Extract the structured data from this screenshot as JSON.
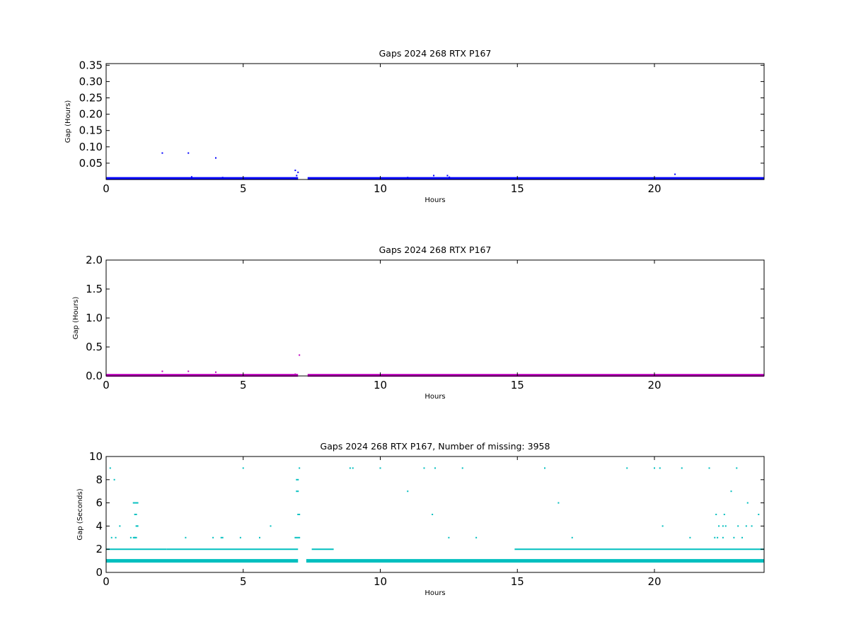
{
  "chart_data": [
    {
      "type": "scatter",
      "title": "Gaps 2024 268 RTX  P167",
      "xlabel": "Hours",
      "ylabel": "Gap (Hours)",
      "xlim": [
        0,
        24
      ],
      "ylim": [
        0,
        0.355
      ],
      "xticks": [
        "0",
        "5",
        "10",
        "15",
        "20"
      ],
      "yticks": [
        "0.05",
        "0.10",
        "0.15",
        "0.20",
        "0.25",
        "0.30",
        "0.35"
      ],
      "grid": false,
      "color": "#0000ff",
      "baseline": {
        "y": 0.003,
        "x_ranges": [
          [
            0,
            7.0
          ],
          [
            7.35,
            24
          ]
        ]
      },
      "series": [
        {
          "x": [
            2.05,
            3.0,
            3.12,
            4.0,
            4.25,
            6.9,
            6.95,
            7.0,
            11.0,
            11.95,
            12.45,
            12.52,
            20.75
          ],
          "y": [
            0.081,
            0.081,
            0.008,
            0.066,
            0.006,
            0.028,
            0.012,
            0.022,
            0.006,
            0.012,
            0.012,
            0.007,
            0.016
          ]
        }
      ]
    },
    {
      "type": "scatter",
      "title": "Gaps 2024 268 RTX  P167",
      "xlabel": "Hours",
      "ylabel": "Gap (Hours)",
      "xlim": [
        0,
        24
      ],
      "ylim": [
        0,
        2.0
      ],
      "xticks": [
        "0",
        "5",
        "10",
        "15",
        "20"
      ],
      "yticks": [
        "0.0",
        "0.5",
        "1.0",
        "1.5",
        "2.0"
      ],
      "grid": false,
      "color": "#bf00bf",
      "baseline": {
        "y": 0.01,
        "x_ranges": [
          [
            0,
            7.0
          ],
          [
            7.35,
            24
          ]
        ]
      },
      "series": [
        {
          "x": [
            2.05,
            3.0,
            4.0,
            6.9,
            7.05
          ],
          "y": [
            0.08,
            0.08,
            0.065,
            0.03,
            0.36
          ]
        }
      ]
    },
    {
      "type": "scatter",
      "title": "Gaps 2024 268 RTX  P167, Number of missing: 3958",
      "xlabel": "Hours",
      "ylabel": "Gap (Seconds)",
      "xlim": [
        0,
        24
      ],
      "ylim": [
        0,
        10
      ],
      "xticks": [
        "0",
        "5",
        "10",
        "15",
        "20"
      ],
      "yticks": [
        "0",
        "2",
        "4",
        "6",
        "8",
        "10"
      ],
      "grid": false,
      "color": "#00bfbf",
      "baseline": {
        "y": 1,
        "x_ranges": [
          [
            0,
            7.0
          ],
          [
            7.3,
            24
          ]
        ]
      },
      "secondary_line": {
        "y": 2,
        "x_ranges": [
          [
            0,
            2.2
          ],
          [
            2.2,
            7.0
          ],
          [
            7.5,
            8.3
          ],
          [
            14.9,
            24
          ]
        ]
      },
      "series": [
        {
          "x": [
            0.15,
            0.2,
            0.3,
            0.35,
            0.5,
            0.9,
            1.0,
            1.05,
            1.1,
            1.15,
            1.0,
            1.05,
            1.1,
            1.15,
            1.05,
            1.1,
            1.05,
            1.1,
            1.15,
            2.9,
            3.9,
            4.2,
            4.25,
            4.9,
            5.0,
            5.6,
            6.0,
            6.9,
            6.95,
            7.0,
            7.05,
            6.95,
            7.0,
            7.05,
            6.95,
            7.0,
            7.0,
            7.05,
            8.9,
            9.0,
            10.0,
            11.0,
            11.6,
            11.9,
            12.0,
            12.5,
            13.0,
            13.5,
            16.0,
            16.5,
            17.0,
            19.0,
            20.0,
            20.2,
            20.3,
            21.0,
            21.3,
            22.0,
            22.2,
            22.3,
            22.25,
            22.35,
            22.5,
            22.55,
            22.5,
            22.6,
            22.8,
            22.9,
            23.0,
            23.05,
            23.2,
            23.35,
            23.4,
            23.55,
            23.8
          ],
          "y": [
            9,
            3,
            8,
            3,
            4,
            3,
            6,
            6,
            6,
            6,
            3,
            3,
            4,
            4,
            5,
            5,
            3,
            3,
            4,
            3,
            3,
            3,
            3,
            3,
            9,
            3,
            4,
            3,
            3,
            3,
            3,
            8,
            8,
            9,
            7,
            7,
            5,
            5,
            9,
            9,
            9,
            7,
            9,
            5,
            9,
            3,
            9,
            3,
            9,
            6,
            3,
            9,
            9,
            9,
            4,
            9,
            3,
            9,
            3,
            3,
            5,
            4,
            4,
            5,
            3,
            4,
            7,
            3,
            9,
            4,
            3,
            4,
            6,
            4,
            5
          ]
        }
      ]
    }
  ]
}
